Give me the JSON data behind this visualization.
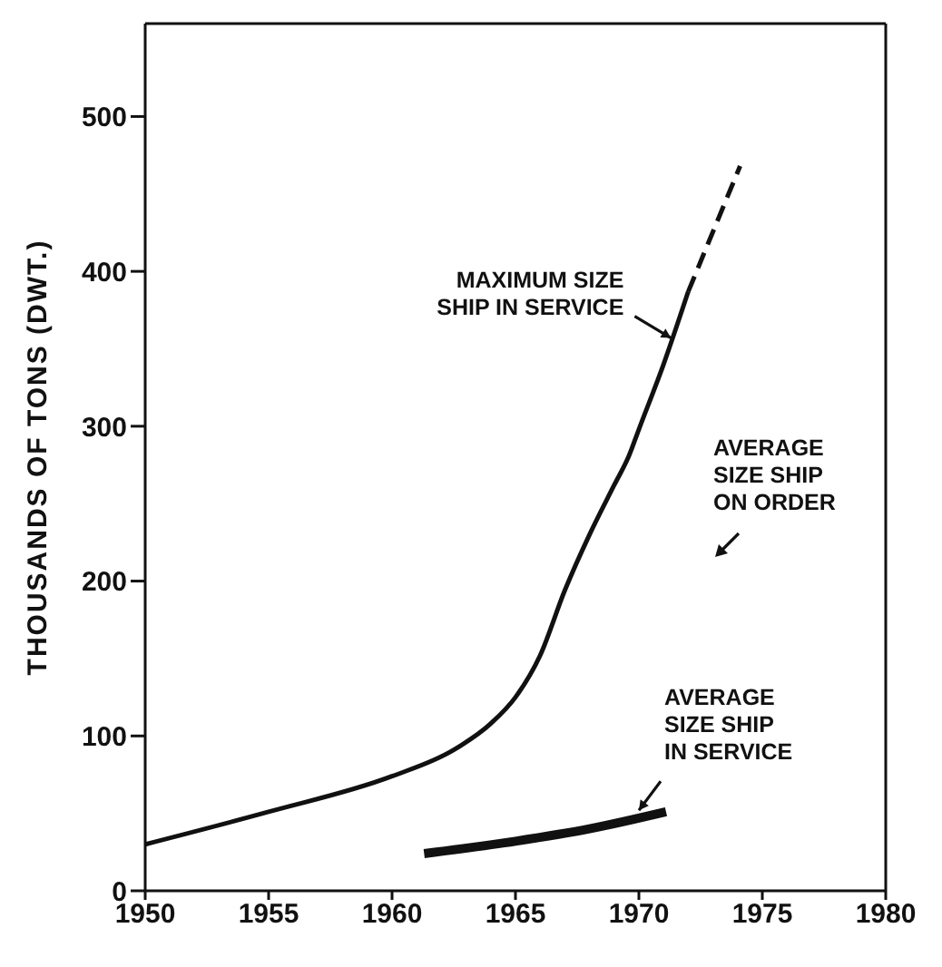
{
  "chart_data": {
    "type": "line",
    "ylabel": "THOUSANDS OF TONS (DWT.)",
    "xlim": [
      1950,
      1980
    ],
    "xticks": [
      1950,
      1955,
      1960,
      1965,
      1970,
      1975,
      1980
    ],
    "ylim": [
      0,
      560
    ],
    "yticks": [
      0,
      100,
      200,
      300,
      400,
      500
    ],
    "marker": "none",
    "series": [
      {
        "color": "#111111",
        "line_style": "solid",
        "x": [
          1950,
          1955,
          1960,
          1962.5,
          1964,
          1965,
          1966,
          1967,
          1968,
          1969,
          1969.6,
          1970,
          1971,
          1972
        ],
        "values": [
          30,
          51,
          74,
          91,
          108,
          125,
          152,
          194,
          230,
          262,
          281,
          298,
          340,
          387
        ]
      },
      {
        "color": "#111111",
        "line_style": "dashed",
        "x": [
          1972,
          1974.1
        ],
        "values": [
          387,
          468
        ]
      },
      {
        "color": "#111111",
        "line_style": "solid",
        "x": [
          1961.3,
          1965,
          1968,
          1971.1
        ],
        "values": [
          24,
          32,
          40,
          51
        ]
      }
    ],
    "annotations": [
      {
        "text": "MAXIMUM SIZE\nSHIP IN SERVICE",
        "x": 1971.3,
        "y": 357
      },
      "AVERAGE\nSIZE SHIP\nON ORDER",
      {
        "text": "AVERAGE\nSIZE SHIP\nIN SERVICE",
        "x": 1970,
        "y": 52
      }
    ]
  }
}
